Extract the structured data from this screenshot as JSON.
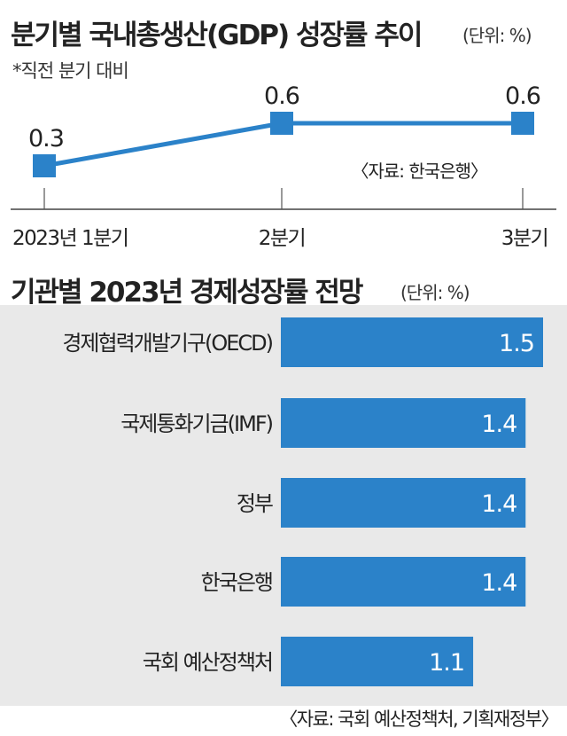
{
  "chart_data": [
    {
      "type": "line",
      "title": "분기별 국내총생산(GDP) 성장률 추이",
      "unit": "(단위: %)",
      "note": "*직전 분기 대비",
      "source": "〈자료: 한국은행〉",
      "categories": [
        "2023년 1분기",
        "2분기",
        "3분기"
      ],
      "series": [
        {
          "values": [
            0.3,
            0.6,
            0.6
          ]
        }
      ],
      "color": "#2b82c9"
    },
    {
      "type": "bar",
      "orientation": "horizontal",
      "title": "기관별 2023년 경제성장률 전망",
      "unit": "(단위: %)",
      "source": "〈자료: 국회 예산정책처, 기획재정부〉",
      "categories": [
        "경제협력개발기구(OECD)",
        "국제통화기금(IMF)",
        "정부",
        "한국은행",
        "국회 예산정책처"
      ],
      "series": [
        {
          "values": [
            1.5,
            1.4,
            1.4,
            1.4,
            1.1
          ]
        }
      ],
      "value_labels": [
        "1.5",
        "1.4",
        "1.4",
        "1.4",
        "1.1"
      ],
      "color": "#2b82c9",
      "background": "#e9e9e9"
    }
  ]
}
